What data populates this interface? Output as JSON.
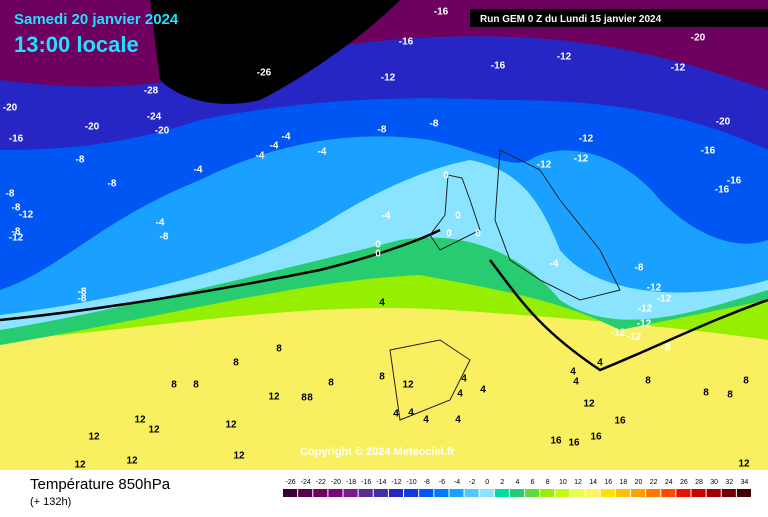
{
  "header": {
    "date": "Samedi 20 janvier 2024",
    "time": "13:00 locale",
    "run": "Run GEM 0 Z du Lundi 15 janvier 2024"
  },
  "footer": {
    "title": "Température 850hPa",
    "lead": "(+ 132h)",
    "copyright": "Copyright © 2024 Meteociel.fr"
  },
  "legend": {
    "values": [
      -26,
      -24,
      -22,
      -20,
      -18,
      -16,
      -14,
      -12,
      -10,
      -8,
      -6,
      -4,
      -2,
      0,
      2,
      4,
      6,
      8,
      10,
      12,
      14,
      16,
      18,
      20,
      22,
      24,
      26,
      28,
      30,
      32,
      34
    ],
    "colors": [
      "#3c0030",
      "#550048",
      "#6e0060",
      "#800078",
      "#7a1a8c",
      "#5a2a96",
      "#4030a8",
      "#2626c4",
      "#1438e0",
      "#0056f2",
      "#0078ff",
      "#1aa0ff",
      "#50c8ff",
      "#8ae4ff",
      "#00dca0",
      "#28cc70",
      "#5cdc40",
      "#96ee00",
      "#c4fa10",
      "#e8ff48",
      "#fff460",
      "#ffe000",
      "#ffc000",
      "#ffa000",
      "#ff7800",
      "#ff4a00",
      "#f01000",
      "#cc0000",
      "#a00000",
      "#700000",
      "#400000"
    ]
  },
  "map_labels": [
    "-16",
    "-20",
    "-16",
    "-16",
    "-12",
    "-12",
    "-26",
    "-28",
    "-12",
    "-20",
    "-24",
    "-20",
    "-20",
    "-16",
    "-8",
    "-8",
    "-20",
    "-12",
    "-12",
    "-16",
    "-12",
    "-16",
    "-16",
    "-4",
    "-4",
    "-4",
    "-4",
    "-8",
    "-4",
    "-8",
    "-8",
    "-8",
    "-12",
    "-8",
    "-12",
    "-4",
    "-4",
    "-8",
    "0",
    "0",
    "0",
    "0",
    "0",
    "0",
    "-4",
    "-8",
    "-12",
    "-12",
    "-8",
    "-8",
    "-12",
    "-12",
    "4",
    "-12",
    "-12",
    "-8",
    "8",
    "8",
    "4",
    "4",
    "4",
    "8",
    "8",
    "8",
    "8",
    "8",
    "8",
    "4",
    "4",
    "4",
    "4",
    "4",
    "4",
    "4",
    "8",
    "8",
    "8",
    "12",
    "12",
    "12",
    "12",
    "12",
    "12",
    "12",
    "12",
    "12",
    "12",
    "12",
    "16",
    "16",
    "16",
    "16",
    "8"
  ]
}
